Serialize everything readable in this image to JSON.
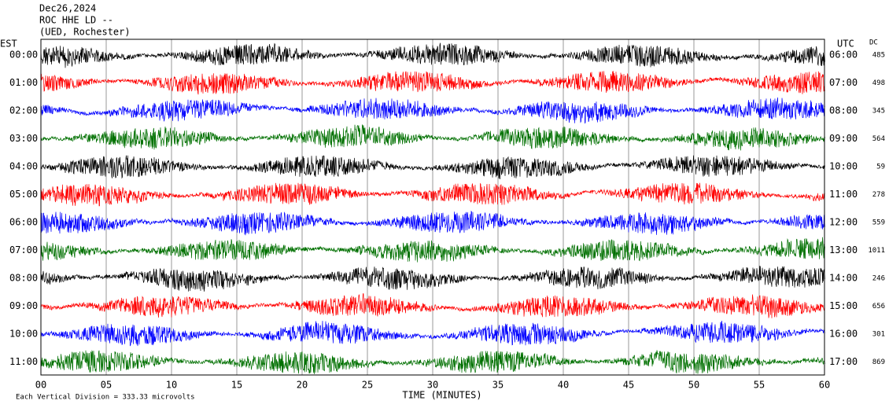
{
  "chart_data": {
    "type": "helicorder",
    "header": [
      "Dec26,2024",
      "ROC HHE LD --",
      "(UED, Rochester)"
    ],
    "left_axis_label": "EST",
    "right_axis_label": "UTC",
    "dc_label": "DC",
    "x_label": "TIME (MINUTES)",
    "scale_note": "Each Vertical Division =  333.33 microvolts",
    "xlim": [
      0,
      60
    ],
    "xticks": [
      {
        "value": 0,
        "label": "00"
      },
      {
        "value": 5,
        "label": "05"
      },
      10,
      15,
      20,
      25,
      30,
      35,
      40,
      45,
      50,
      55,
      60
    ],
    "rows": [
      {
        "est": "00:00",
        "utc": "06:00",
        "dc": 485,
        "color": "#000000"
      },
      {
        "est": "01:00",
        "utc": "07:00",
        "dc": 498,
        "color": "#ff0000"
      },
      {
        "est": "02:00",
        "utc": "08:00",
        "dc": 345,
        "color": "#0000ff"
      },
      {
        "est": "03:00",
        "utc": "09:00",
        "dc": 564,
        "color": "#007000"
      },
      {
        "est": "04:00",
        "utc": "10:00",
        "dc": 59,
        "color": "#000000"
      },
      {
        "est": "05:00",
        "utc": "11:00",
        "dc": 278,
        "color": "#ff0000"
      },
      {
        "est": "06:00",
        "utc": "12:00",
        "dc": 559,
        "color": "#0000ff"
      },
      {
        "est": "07:00",
        "utc": "13:00",
        "dc": 1011,
        "color": "#007000"
      },
      {
        "est": "08:00",
        "utc": "14:00",
        "dc": 246,
        "color": "#000000"
      },
      {
        "est": "09:00",
        "utc": "15:00",
        "dc": 656,
        "color": "#ff0000"
      },
      {
        "est": "10:00",
        "utc": "16:00",
        "dc": 301,
        "color": "#0000ff"
      },
      {
        "est": "11:00",
        "utc": "17:00",
        "dc": 869,
        "color": "#007000"
      }
    ]
  }
}
